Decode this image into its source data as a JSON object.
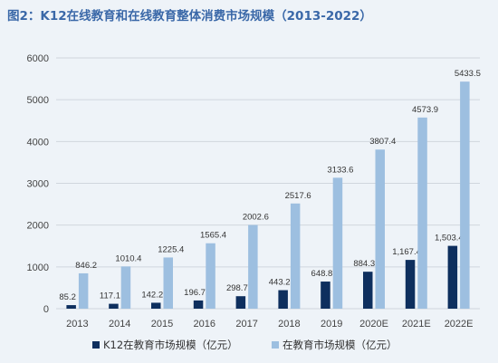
{
  "title": {
    "tag": "图2：",
    "text": "K12在线教育和在线教育整体消费市场规模（2013-2022）"
  },
  "chart_data": {
    "type": "bar",
    "title": "K12在线教育和在线教育整体消费市场规模（2013-2022）",
    "categories": [
      "2013",
      "2014",
      "2015",
      "2016",
      "2017",
      "2018",
      "2019",
      "2020E",
      "2021E",
      "2022E"
    ],
    "series": [
      {
        "name": "K12在教育市场规模（亿元）",
        "color": "#0e2f5e",
        "values": [
          85.2,
          117.1,
          142.2,
          196.7,
          298.7,
          443.2,
          648.8,
          884.3,
          1167.4,
          1503.4
        ],
        "labels": [
          "85.2",
          "117.1",
          "142.2",
          "196.7",
          "298.7",
          "443.2",
          "648.8",
          "884.3",
          "1,167.4",
          "1,503.4"
        ]
      },
      {
        "name": "在教育市场规模（亿元）",
        "color": "#9dbfe0",
        "values": [
          846.2,
          1010.4,
          1225.4,
          1565.4,
          2002.6,
          2517.6,
          3133.6,
          3807.4,
          4573.9,
          5433.5
        ],
        "labels": [
          "846.2",
          "1010.4",
          "1225.4",
          "1565.4",
          "2002.6",
          "2517.6",
          "3133.6",
          "3807.4",
          "4573.9",
          "5433.5"
        ]
      }
    ],
    "ylim": [
      0,
      6000
    ],
    "yticks": [
      "0",
      "1000",
      "2000",
      "3000",
      "4000",
      "5000",
      "6000"
    ],
    "grid": true,
    "legend": "bottom"
  }
}
